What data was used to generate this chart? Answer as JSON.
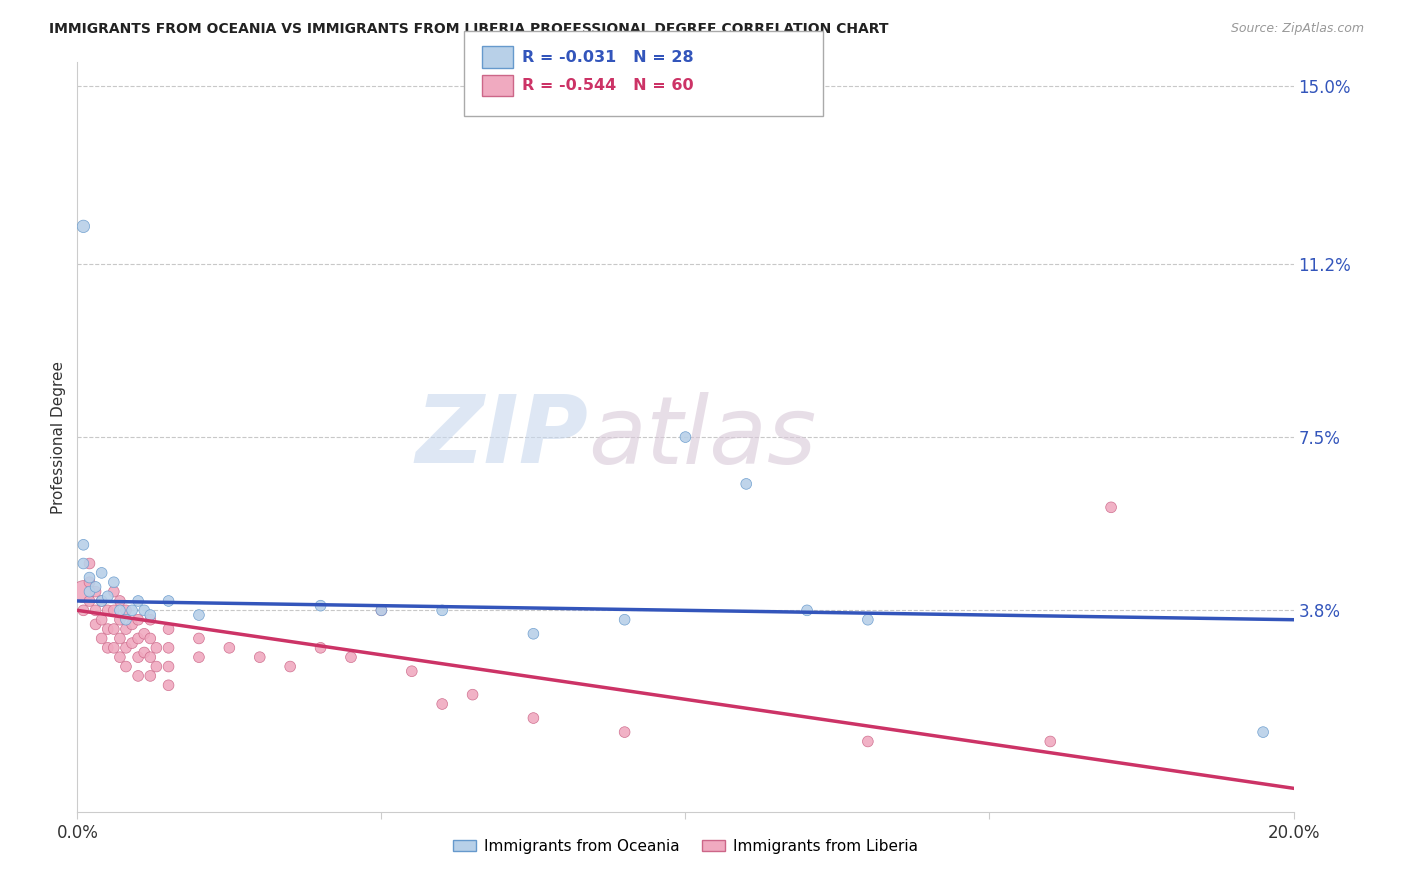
{
  "title": "IMMIGRANTS FROM OCEANIA VS IMMIGRANTS FROM LIBERIA PROFESSIONAL DEGREE CORRELATION CHART",
  "source": "Source: ZipAtlas.com",
  "ylabel": "Professional Degree",
  "xlim": [
    0.0,
    0.2
  ],
  "ylim": [
    -0.005,
    0.155
  ],
  "yticks": [
    0.038,
    0.075,
    0.112,
    0.15
  ],
  "ytick_labels": [
    "3.8%",
    "7.5%",
    "11.2%",
    "15.0%"
  ],
  "xticks": [
    0.0,
    0.05,
    0.1,
    0.15,
    0.2
  ],
  "xtick_labels": [
    "0.0%",
    "",
    "",
    "",
    "20.0%"
  ],
  "background_color": "#ffffff",
  "grid_color": "#c8c8c8",
  "oceania_color": "#b8d0e8",
  "liberia_color": "#f0aac0",
  "oceania_edge_color": "#6699cc",
  "liberia_edge_color": "#cc6688",
  "oceania_line_color": "#3355bb",
  "liberia_line_color": "#cc3366",
  "legend_R_oceania": "R = -0.031",
  "legend_N_oceania": "N = 28",
  "legend_R_liberia": "R = -0.544",
  "legend_N_liberia": "N = 60",
  "watermark_zip": "ZIP",
  "watermark_atlas": "atlas",
  "oceania_data": [
    [
      0.001,
      0.12
    ],
    [
      0.001,
      0.052
    ],
    [
      0.001,
      0.048
    ],
    [
      0.002,
      0.045
    ],
    [
      0.002,
      0.042
    ],
    [
      0.003,
      0.043
    ],
    [
      0.004,
      0.046
    ],
    [
      0.004,
      0.04
    ],
    [
      0.005,
      0.041
    ],
    [
      0.006,
      0.044
    ],
    [
      0.007,
      0.038
    ],
    [
      0.008,
      0.036
    ],
    [
      0.009,
      0.038
    ],
    [
      0.01,
      0.04
    ],
    [
      0.011,
      0.038
    ],
    [
      0.012,
      0.037
    ],
    [
      0.015,
      0.04
    ],
    [
      0.02,
      0.037
    ],
    [
      0.04,
      0.039
    ],
    [
      0.05,
      0.038
    ],
    [
      0.06,
      0.038
    ],
    [
      0.075,
      0.033
    ],
    [
      0.09,
      0.036
    ],
    [
      0.1,
      0.075
    ],
    [
      0.11,
      0.065
    ],
    [
      0.12,
      0.038
    ],
    [
      0.13,
      0.036
    ],
    [
      0.195,
      0.012
    ]
  ],
  "liberia_data": [
    [
      0.001,
      0.042
    ],
    [
      0.001,
      0.038
    ],
    [
      0.002,
      0.048
    ],
    [
      0.002,
      0.044
    ],
    [
      0.002,
      0.04
    ],
    [
      0.003,
      0.042
    ],
    [
      0.003,
      0.038
    ],
    [
      0.003,
      0.035
    ],
    [
      0.004,
      0.04
    ],
    [
      0.004,
      0.036
    ],
    [
      0.004,
      0.032
    ],
    [
      0.005,
      0.038
    ],
    [
      0.005,
      0.034
    ],
    [
      0.005,
      0.03
    ],
    [
      0.006,
      0.042
    ],
    [
      0.006,
      0.038
    ],
    [
      0.006,
      0.034
    ],
    [
      0.006,
      0.03
    ],
    [
      0.007,
      0.04
    ],
    [
      0.007,
      0.036
    ],
    [
      0.007,
      0.032
    ],
    [
      0.007,
      0.028
    ],
    [
      0.008,
      0.038
    ],
    [
      0.008,
      0.034
    ],
    [
      0.008,
      0.03
    ],
    [
      0.008,
      0.026
    ],
    [
      0.009,
      0.035
    ],
    [
      0.009,
      0.031
    ],
    [
      0.01,
      0.036
    ],
    [
      0.01,
      0.032
    ],
    [
      0.01,
      0.028
    ],
    [
      0.01,
      0.024
    ],
    [
      0.011,
      0.033
    ],
    [
      0.011,
      0.029
    ],
    [
      0.012,
      0.036
    ],
    [
      0.012,
      0.032
    ],
    [
      0.012,
      0.028
    ],
    [
      0.012,
      0.024
    ],
    [
      0.013,
      0.03
    ],
    [
      0.013,
      0.026
    ],
    [
      0.015,
      0.034
    ],
    [
      0.015,
      0.03
    ],
    [
      0.015,
      0.026
    ],
    [
      0.015,
      0.022
    ],
    [
      0.02,
      0.032
    ],
    [
      0.02,
      0.028
    ],
    [
      0.025,
      0.03
    ],
    [
      0.03,
      0.028
    ],
    [
      0.035,
      0.026
    ],
    [
      0.04,
      0.03
    ],
    [
      0.045,
      0.028
    ],
    [
      0.05,
      0.038
    ],
    [
      0.055,
      0.025
    ],
    [
      0.06,
      0.018
    ],
    [
      0.065,
      0.02
    ],
    [
      0.075,
      0.015
    ],
    [
      0.09,
      0.012
    ],
    [
      0.13,
      0.01
    ],
    [
      0.16,
      0.01
    ],
    [
      0.17,
      0.06
    ]
  ],
  "oceania_sizes": [
    80,
    60,
    60,
    60,
    60,
    60,
    60,
    60,
    60,
    60,
    60,
    60,
    60,
    60,
    60,
    60,
    60,
    60,
    60,
    60,
    60,
    60,
    60,
    60,
    60,
    60,
    60,
    60
  ],
  "liberia_sizes": [
    250,
    60,
    60,
    60,
    60,
    60,
    60,
    60,
    60,
    60,
    60,
    60,
    60,
    60,
    60,
    60,
    60,
    60,
    60,
    60,
    60,
    60,
    60,
    60,
    60,
    60,
    60,
    60,
    60,
    60,
    60,
    60,
    60,
    60,
    60,
    60,
    60,
    60,
    60,
    60,
    60,
    60,
    60,
    60,
    60,
    60,
    60,
    60,
    60,
    60,
    60,
    60,
    60,
    60,
    60,
    60,
    60,
    60,
    60,
    60
  ]
}
